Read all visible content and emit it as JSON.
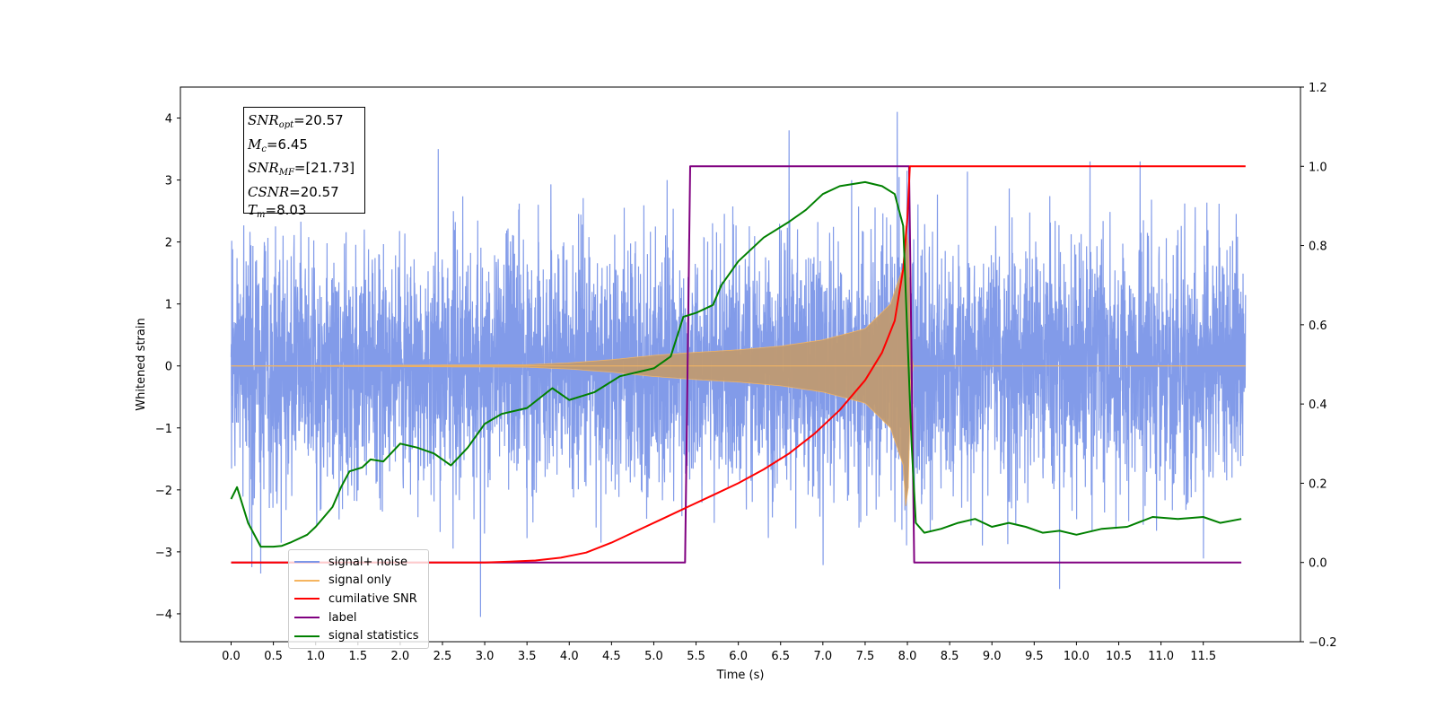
{
  "chart_data": {
    "type": "line",
    "xlabel": "Time (s)",
    "ylabel": "Whitened strain",
    "xlim": [
      -0.6,
      12.65
    ],
    "ylim": [
      -4.45,
      4.5
    ],
    "y2lim": [
      -0.2,
      1.2
    ],
    "xticks": [
      "0.0",
      "0.5",
      "1.0",
      "1.5",
      "2.0",
      "2.5",
      "3.0",
      "3.5",
      "4.0",
      "4.5",
      "5.0",
      "5.5",
      "6.0",
      "6.5",
      "7.0",
      "7.5",
      "8.0",
      "8.5",
      "9.0",
      "9.5",
      "10.0",
      "10.5",
      "11.0",
      "11.5"
    ],
    "yticks": [
      "4",
      "3",
      "2",
      "1",
      "0",
      "−1",
      "−2",
      "−3",
      "−4"
    ],
    "y2ticks": [
      "1.2",
      "1.0",
      "0.8",
      "0.6",
      "0.4",
      "0.2",
      "0.0",
      "−0.2"
    ],
    "legend_position": "lower-left",
    "annotation": {
      "snr_opt": {
        "label": "SNR",
        "sub": "opt",
        "value": "=20.57"
      },
      "mc": {
        "label": "M",
        "sub": "c",
        "value": "=6.45"
      },
      "snr_mf": {
        "label": "SNR",
        "sub": "MF",
        "value": "=[21.73]"
      },
      "csnr": {
        "label": "CSNR",
        "sub": "",
        "value": "=20.57"
      },
      "tm": {
        "label": "T",
        "sub": "m",
        "value": "=8.03"
      }
    },
    "series": [
      {
        "name": "signal+ noise",
        "color": "#7b96e8",
        "axis": "left",
        "kind": "noise",
        "t_range": [
          0.0,
          12.0
        ],
        "amplitude_typical": 1.5,
        "max": 4.15,
        "min": -4.05,
        "notable_peaks": [
          [
            6.6,
            3.8
          ],
          [
            7.88,
            4.1
          ],
          [
            2.45,
            3.5
          ],
          [
            2.95,
            -4.05
          ],
          [
            9.8,
            -3.6
          ],
          [
            0.35,
            -3.35
          ]
        ]
      },
      {
        "name": "signal only",
        "color": "#f5b560",
        "axis": "left",
        "kind": "chirp",
        "t_range": [
          0.0,
          12.0
        ],
        "merger_time": 8.03,
        "envelope": [
          [
            0.0,
            0.0
          ],
          [
            3.5,
            0.02
          ],
          [
            4.0,
            0.05
          ],
          [
            4.5,
            0.1
          ],
          [
            5.0,
            0.17
          ],
          [
            5.5,
            0.22
          ],
          [
            6.0,
            0.26
          ],
          [
            6.5,
            0.32
          ],
          [
            7.0,
            0.42
          ],
          [
            7.5,
            0.6
          ],
          [
            7.8,
            1.0
          ],
          [
            7.95,
            1.6
          ],
          [
            8.0,
            2.7
          ],
          [
            8.03,
            0.5
          ],
          [
            8.05,
            0.0
          ],
          [
            12.0,
            0.0
          ]
        ]
      },
      {
        "name": "cumilative SNR",
        "color": "#ff0000",
        "axis": "right",
        "points": [
          [
            0.0,
            0.0
          ],
          [
            3.0,
            0.0
          ],
          [
            3.3,
            0.002
          ],
          [
            3.6,
            0.005
          ],
          [
            3.9,
            0.012
          ],
          [
            4.2,
            0.025
          ],
          [
            4.5,
            0.05
          ],
          [
            4.8,
            0.08
          ],
          [
            5.1,
            0.11
          ],
          [
            5.4,
            0.14
          ],
          [
            5.7,
            0.17
          ],
          [
            6.0,
            0.2
          ],
          [
            6.3,
            0.235
          ],
          [
            6.6,
            0.275
          ],
          [
            6.9,
            0.325
          ],
          [
            7.2,
            0.385
          ],
          [
            7.5,
            0.46
          ],
          [
            7.7,
            0.53
          ],
          [
            7.85,
            0.61
          ],
          [
            7.95,
            0.74
          ],
          [
            8.0,
            0.87
          ],
          [
            8.03,
            1.0
          ],
          [
            12.0,
            1.0
          ]
        ]
      },
      {
        "name": "label",
        "color": "#800080",
        "axis": "right",
        "points": [
          [
            0.0,
            0.0
          ],
          [
            5.37,
            0.0
          ],
          [
            5.43,
            1.0
          ],
          [
            8.02,
            1.0
          ],
          [
            8.08,
            0.0
          ],
          [
            11.95,
            0.0
          ]
        ]
      },
      {
        "name": "signal statistics",
        "color": "#008000",
        "axis": "right",
        "points": [
          [
            0.0,
            0.16
          ],
          [
            0.07,
            0.19
          ],
          [
            0.2,
            0.1
          ],
          [
            0.35,
            0.04
          ],
          [
            0.5,
            0.04
          ],
          [
            0.6,
            0.042
          ],
          [
            0.7,
            0.05
          ],
          [
            0.9,
            0.07
          ],
          [
            1.0,
            0.09
          ],
          [
            1.2,
            0.14
          ],
          [
            1.3,
            0.19
          ],
          [
            1.4,
            0.23
          ],
          [
            1.55,
            0.24
          ],
          [
            1.65,
            0.26
          ],
          [
            1.8,
            0.255
          ],
          [
            2.0,
            0.3
          ],
          [
            2.2,
            0.29
          ],
          [
            2.4,
            0.275
          ],
          [
            2.6,
            0.245
          ],
          [
            2.8,
            0.29
          ],
          [
            3.0,
            0.35
          ],
          [
            3.2,
            0.375
          ],
          [
            3.5,
            0.39
          ],
          [
            3.8,
            0.44
          ],
          [
            4.0,
            0.41
          ],
          [
            4.3,
            0.43
          ],
          [
            4.6,
            0.47
          ],
          [
            4.8,
            0.48
          ],
          [
            5.0,
            0.49
          ],
          [
            5.2,
            0.52
          ],
          [
            5.35,
            0.62
          ],
          [
            5.5,
            0.63
          ],
          [
            5.7,
            0.65
          ],
          [
            5.8,
            0.7
          ],
          [
            6.0,
            0.76
          ],
          [
            6.3,
            0.82
          ],
          [
            6.6,
            0.86
          ],
          [
            6.8,
            0.89
          ],
          [
            7.0,
            0.93
          ],
          [
            7.2,
            0.95
          ],
          [
            7.5,
            0.96
          ],
          [
            7.7,
            0.95
          ],
          [
            7.85,
            0.93
          ],
          [
            7.95,
            0.85
          ],
          [
            8.05,
            0.3
          ],
          [
            8.1,
            0.1
          ],
          [
            8.2,
            0.075
          ],
          [
            8.4,
            0.085
          ],
          [
            8.6,
            0.1
          ],
          [
            8.8,
            0.11
          ],
          [
            9.0,
            0.09
          ],
          [
            9.2,
            0.1
          ],
          [
            9.4,
            0.09
          ],
          [
            9.6,
            0.075
          ],
          [
            9.8,
            0.08
          ],
          [
            10.0,
            0.07
          ],
          [
            10.3,
            0.085
          ],
          [
            10.6,
            0.09
          ],
          [
            10.9,
            0.115
          ],
          [
            11.2,
            0.11
          ],
          [
            11.5,
            0.115
          ],
          [
            11.7,
            0.1
          ],
          [
            11.95,
            0.11
          ]
        ]
      }
    ]
  }
}
